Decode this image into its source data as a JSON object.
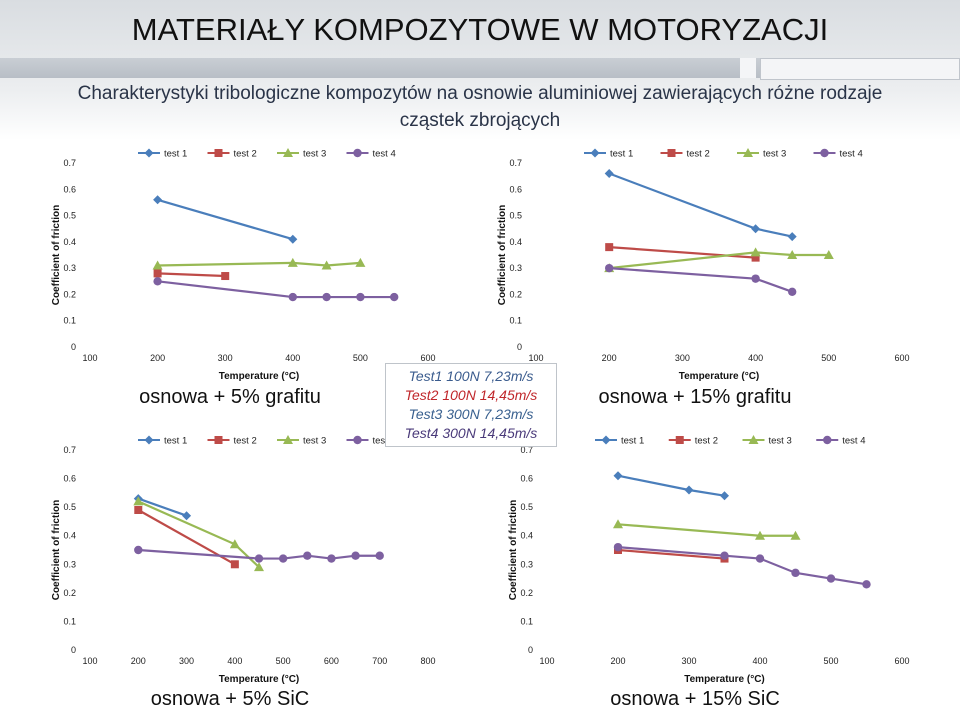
{
  "page": {
    "title": "MATERIAŁY KOMPOZYTOWE W MOTORYZACJI",
    "subtitle_line1": "Charakterystyki tribologiczne kompozytów na  osnowie aluminiowej zawierających różne rodzaje",
    "subtitle_line2": "cząstek zbrojących",
    "legend_box": [
      "Test1 100N 7,23m/s",
      "Test2 100N 14,45m/s",
      "Test3 300N 7,23m/s",
      "Test4 300N 14,45m/s"
    ]
  },
  "colors": {
    "test1": "#4a7ebb",
    "test2": "#be4b48",
    "test3": "#98b954",
    "test4": "#7d60a0"
  },
  "chart_data": [
    {
      "type": "line",
      "caption": "osnowa + 5% grafitu",
      "xlabel": "Temperature (°C)",
      "ylabel": "Coefficient of friction",
      "xlim": [
        100,
        600
      ],
      "ylim": [
        0,
        0.7
      ],
      "xticks": [
        100,
        200,
        300,
        400,
        500,
        600
      ],
      "yticks": [
        0,
        0.1,
        0.2,
        0.3,
        0.4,
        0.5,
        0.6,
        0.7
      ],
      "legend": "top",
      "series": [
        {
          "name": "test 1",
          "marker": "diamond",
          "points": [
            [
              200,
              0.56
            ],
            [
              400,
              0.41
            ]
          ]
        },
        {
          "name": "test 2",
          "marker": "square",
          "points": [
            [
              200,
              0.28
            ],
            [
              300,
              0.27
            ]
          ]
        },
        {
          "name": "test 3",
          "marker": "triangle",
          "points": [
            [
              200,
              0.31
            ],
            [
              400,
              0.32
            ],
            [
              450,
              0.31
            ],
            [
              500,
              0.32
            ]
          ]
        },
        {
          "name": "test 4",
          "marker": "circle",
          "points": [
            [
              200,
              0.25
            ],
            [
              400,
              0.19
            ],
            [
              450,
              0.19
            ],
            [
              500,
              0.19
            ],
            [
              550,
              0.19
            ]
          ]
        }
      ]
    },
    {
      "type": "line",
      "caption": "osnowa + 15% grafitu",
      "xlabel": "Temperature (°C)",
      "ylabel": "Coefficient of friction",
      "xlim": [
        100,
        600
      ],
      "ylim": [
        0,
        0.7
      ],
      "xticks": [
        100,
        200,
        300,
        400,
        500,
        600
      ],
      "yticks": [
        0,
        0.1,
        0.2,
        0.3,
        0.4,
        0.5,
        0.6,
        0.7
      ],
      "legend": "top",
      "series": [
        {
          "name": "test 1",
          "marker": "diamond",
          "points": [
            [
              200,
              0.66
            ],
            [
              400,
              0.45
            ],
            [
              450,
              0.42
            ]
          ]
        },
        {
          "name": "test 2",
          "marker": "square",
          "points": [
            [
              200,
              0.38
            ],
            [
              400,
              0.34
            ]
          ]
        },
        {
          "name": "test 3",
          "marker": "triangle",
          "points": [
            [
              200,
              0.3
            ],
            [
              400,
              0.36
            ],
            [
              450,
              0.35
            ],
            [
              500,
              0.35
            ]
          ]
        },
        {
          "name": "test 4",
          "marker": "circle",
          "points": [
            [
              200,
              0.3
            ],
            [
              400,
              0.26
            ],
            [
              450,
              0.21
            ]
          ]
        }
      ]
    },
    {
      "type": "line",
      "caption": "osnowa + 5% SiC",
      "xlabel": "Temperature (°C)",
      "ylabel": "Coefficient of friction",
      "xlim": [
        100,
        800
      ],
      "ylim": [
        0,
        0.7
      ],
      "xticks": [
        100,
        200,
        300,
        400,
        500,
        600,
        700,
        800
      ],
      "yticks": [
        0,
        0.1,
        0.2,
        0.3,
        0.4,
        0.5,
        0.6,
        0.7
      ],
      "legend": "top",
      "series": [
        {
          "name": "test 1",
          "marker": "diamond",
          "points": [
            [
              200,
              0.53
            ],
            [
              300,
              0.47
            ]
          ]
        },
        {
          "name": "test 2",
          "marker": "square",
          "points": [
            [
              200,
              0.49
            ],
            [
              400,
              0.3
            ]
          ]
        },
        {
          "name": "test 3",
          "marker": "triangle",
          "points": [
            [
              200,
              0.52
            ],
            [
              400,
              0.37
            ],
            [
              450,
              0.29
            ]
          ]
        },
        {
          "name": "test 4",
          "marker": "circle",
          "points": [
            [
              200,
              0.35
            ],
            [
              450,
              0.32
            ],
            [
              500,
              0.32
            ],
            [
              550,
              0.33
            ],
            [
              600,
              0.32
            ],
            [
              650,
              0.33
            ],
            [
              700,
              0.33
            ]
          ]
        }
      ]
    },
    {
      "type": "line",
      "caption": "osnowa + 15% SiC",
      "xlabel": "Temperature (°C)",
      "ylabel": "Coefficient of friction",
      "xlim": [
        100,
        600
      ],
      "ylim": [
        0,
        0.7
      ],
      "xticks": [
        100,
        200,
        300,
        400,
        500,
        600
      ],
      "yticks": [
        0,
        0.1,
        0.2,
        0.3,
        0.4,
        0.5,
        0.6,
        0.7
      ],
      "legend": "top",
      "series": [
        {
          "name": "test 1",
          "marker": "diamond",
          "points": [
            [
              200,
              0.61
            ],
            [
              300,
              0.56
            ],
            [
              350,
              0.54
            ]
          ]
        },
        {
          "name": "test 2",
          "marker": "square",
          "points": [
            [
              200,
              0.35
            ],
            [
              350,
              0.32
            ]
          ]
        },
        {
          "name": "test 3",
          "marker": "triangle",
          "points": [
            [
              200,
              0.44
            ],
            [
              400,
              0.4
            ],
            [
              450,
              0.4
            ]
          ]
        },
        {
          "name": "test 4",
          "marker": "circle",
          "points": [
            [
              200,
              0.36
            ],
            [
              350,
              0.33
            ],
            [
              400,
              0.32
            ],
            [
              450,
              0.27
            ],
            [
              500,
              0.25
            ],
            [
              550,
              0.23
            ]
          ]
        }
      ]
    }
  ]
}
